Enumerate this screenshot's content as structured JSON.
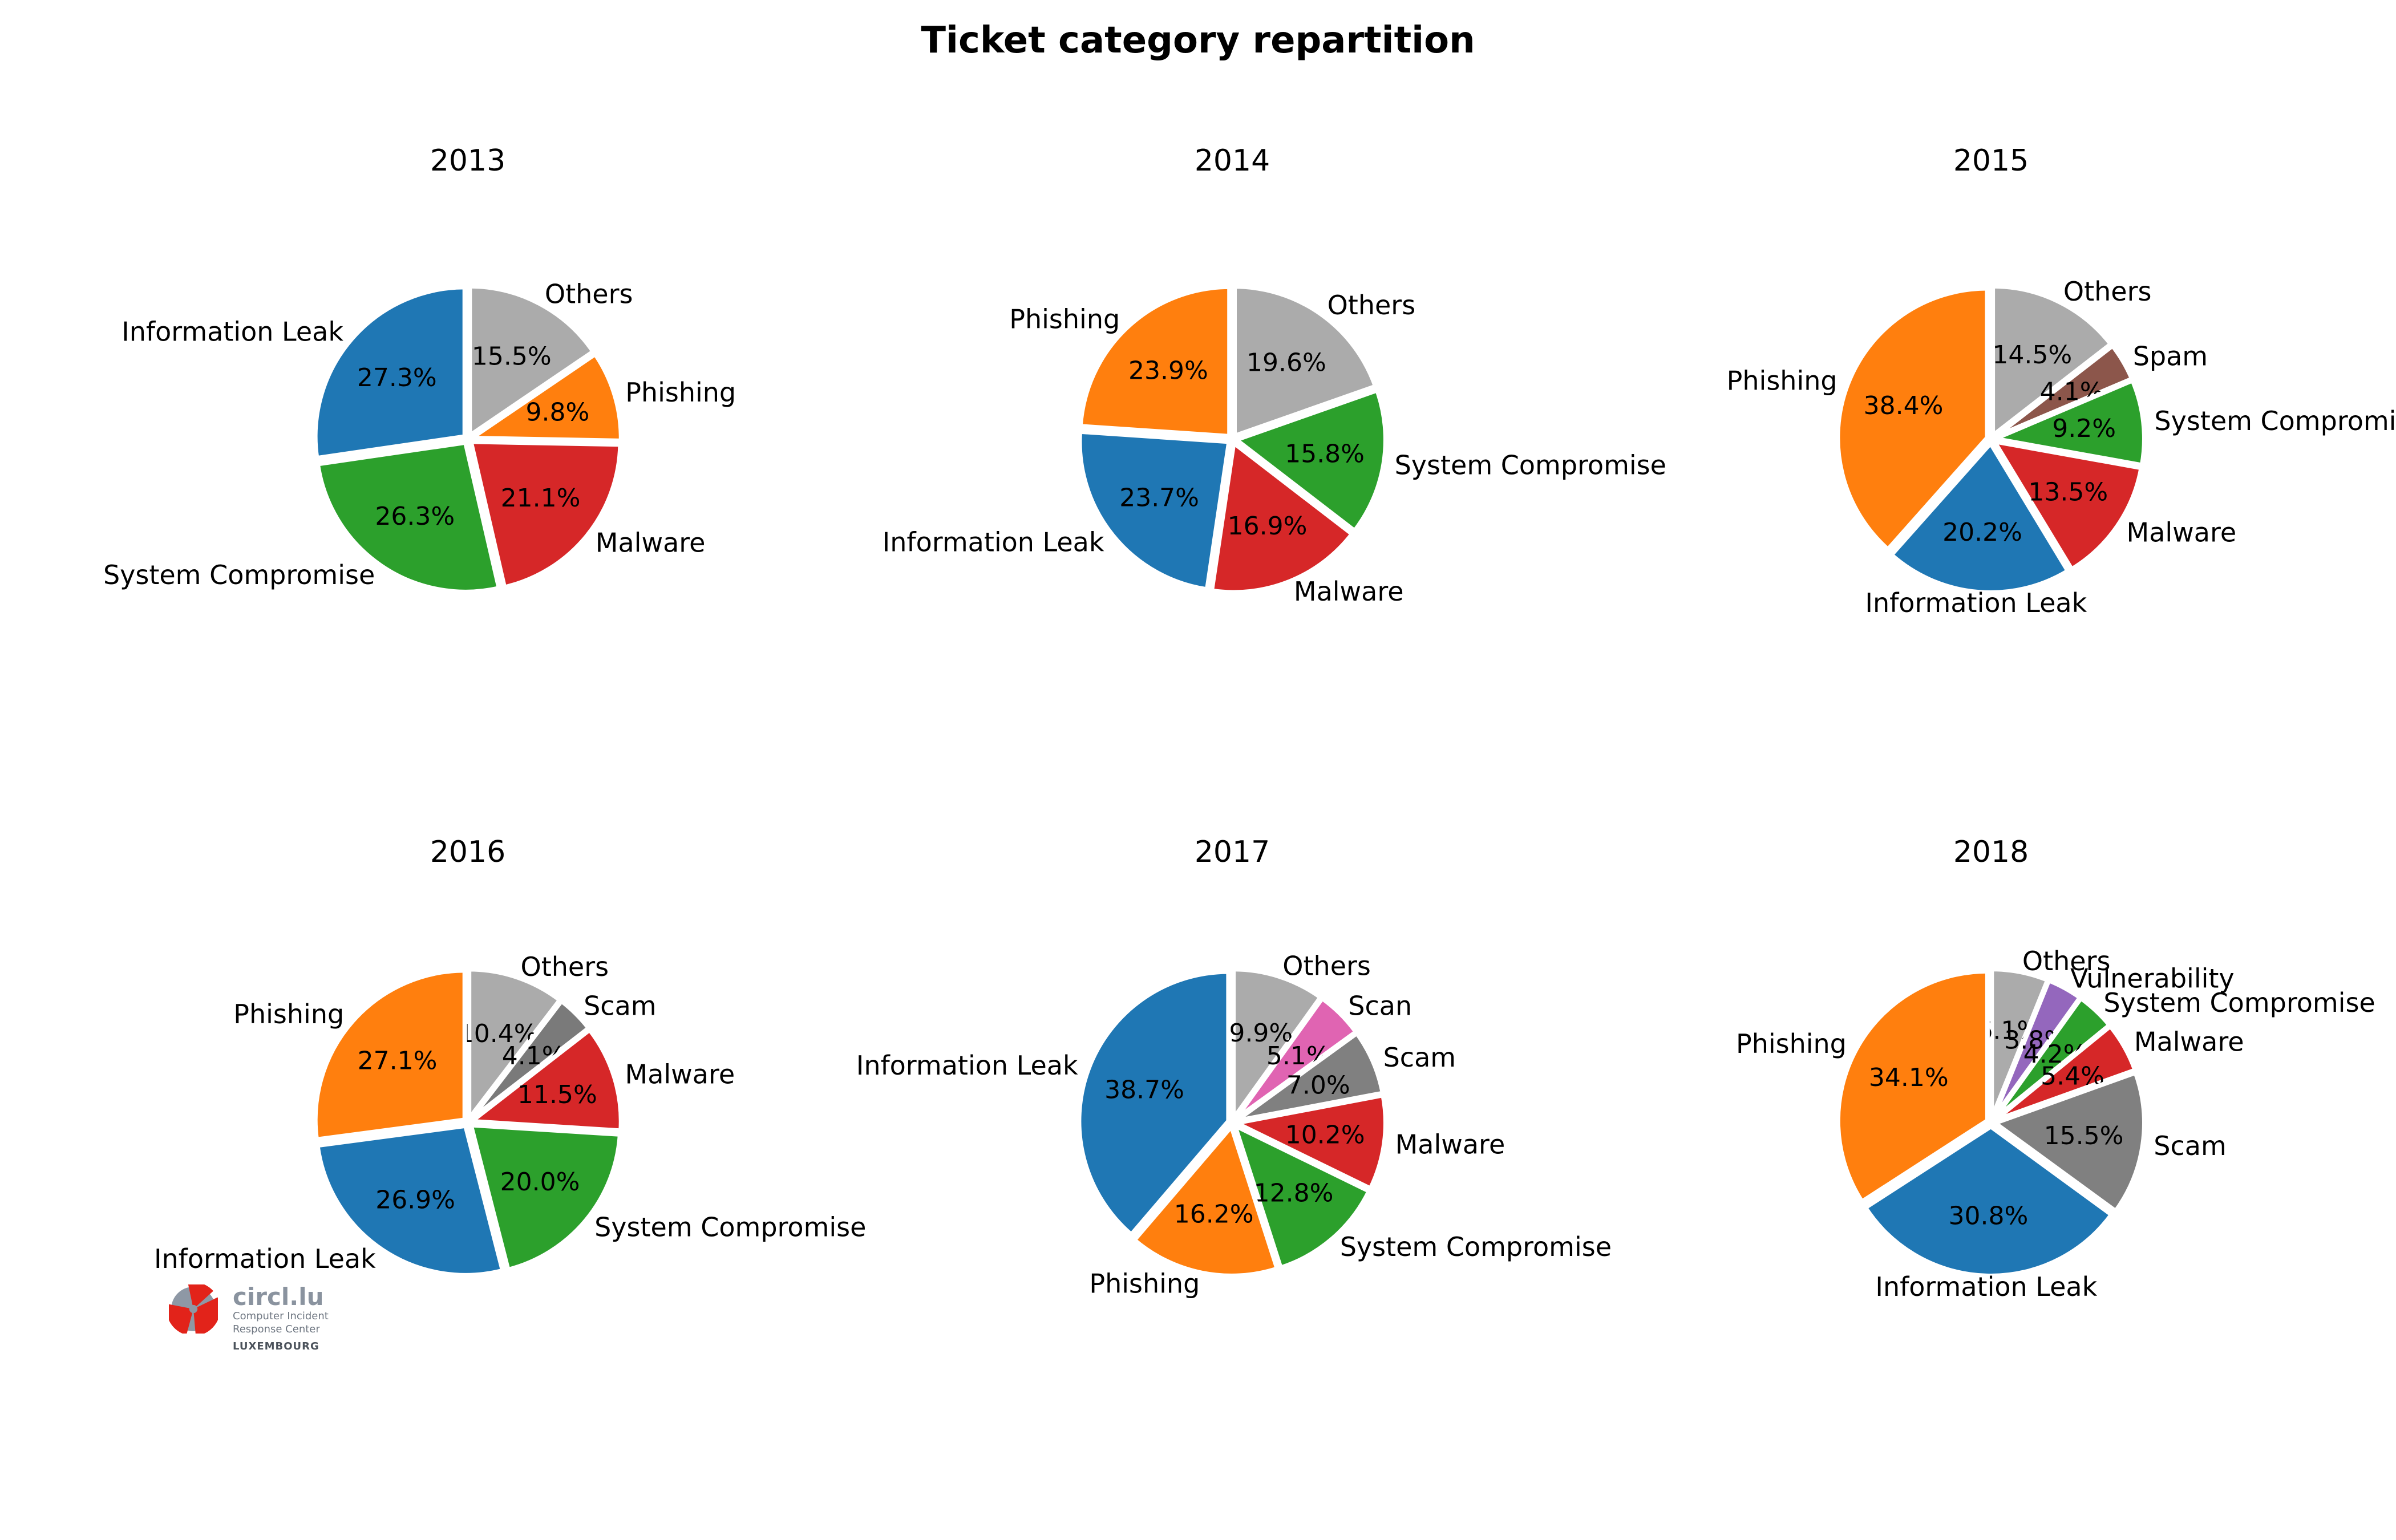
{
  "title": "Ticket category repartition",
  "chart_data": {
    "type": "pie",
    "title": "Ticket category repartition",
    "start_angle": 90,
    "direction": "clockwise",
    "labeldistance": 1.1,
    "pctdistance": 0.6,
    "value_format": "percent",
    "subplots": [
      {
        "title": "2013",
        "labels": [
          "Others",
          "Phishing",
          "Malware",
          "System Compromise",
          "Information Leak"
        ],
        "values": [
          15.5,
          9.8,
          21.1,
          26.3,
          27.3
        ],
        "colors": [
          "#ababab",
          "#ff7f0e",
          "#d62728",
          "#2ca02c",
          "#1f77b4"
        ]
      },
      {
        "title": "2014",
        "labels": [
          "Others",
          "System Compromise",
          "Malware",
          "Information Leak",
          "Phishing"
        ],
        "values": [
          19.6,
          15.8,
          16.9,
          23.7,
          23.9
        ],
        "colors": [
          "#ababab",
          "#2ca02c",
          "#d62728",
          "#1f77b4",
          "#ff7f0e"
        ]
      },
      {
        "title": "2015",
        "labels": [
          "Others",
          "Spam",
          "System Compromise",
          "Malware",
          "Information Leak",
          "Phishing"
        ],
        "values": [
          14.5,
          4.1,
          9.2,
          13.5,
          20.2,
          38.4
        ],
        "colors": [
          "#ababab",
          "#8c564b",
          "#2ca02c",
          "#d62728",
          "#1f77b4",
          "#ff7f0e"
        ]
      },
      {
        "title": "2016",
        "labels": [
          "Others",
          "Scam",
          "Malware",
          "System Compromise",
          "Information Leak",
          "Phishing"
        ],
        "values": [
          10.4,
          4.1,
          11.5,
          20.0,
          26.9,
          27.1
        ],
        "colors": [
          "#ababab",
          "#7a7a7a",
          "#d62728",
          "#2ca02c",
          "#1f77b4",
          "#ff7f0e"
        ]
      },
      {
        "title": "2017",
        "labels": [
          "Others",
          "Scan",
          "Scam",
          "Malware",
          "System Compromise",
          "Phishing",
          "Information Leak"
        ],
        "values": [
          9.9,
          5.1,
          7.0,
          10.2,
          12.8,
          16.2,
          38.7
        ],
        "colors": [
          "#ababab",
          "#e064b2",
          "#808080",
          "#d62728",
          "#2ca02c",
          "#ff7f0e",
          "#1f77b4"
        ]
      },
      {
        "title": "2018",
        "labels": [
          "Others",
          "Vulnerability",
          "System Compromise",
          "Malware",
          "Scam",
          "Information Leak",
          "Phishing"
        ],
        "values": [
          6.1,
          3.8,
          4.2,
          5.4,
          15.5,
          30.8,
          34.1
        ],
        "colors": [
          "#ababab",
          "#9467bd",
          "#2ca02c",
          "#d62728",
          "#808080",
          "#1f77b4",
          "#ff7f0e"
        ]
      }
    ]
  },
  "logo": {
    "name": "circl.lu",
    "lines": [
      "Computer Incident",
      "Response Center"
    ],
    "country": "LUXEMBOURG",
    "accent_color": "#e2231a",
    "gray_color": "#8e98a5"
  }
}
